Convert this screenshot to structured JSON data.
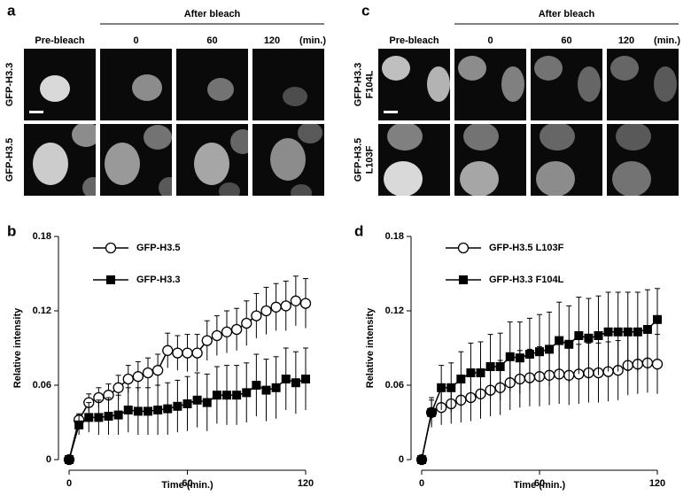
{
  "panels": [
    {
      "label": "a",
      "group": "After bleach",
      "columns": [
        "Pre-bleach",
        "0",
        "60",
        "120"
      ],
      "unit": "(min.)",
      "rows": [
        [
          "GFP-H3.3"
        ],
        [
          "GFP-H3.5"
        ]
      ]
    },
    {
      "label": "c",
      "group": "After bleach",
      "columns": [
        "Pre-bleach",
        "0",
        "60",
        "120"
      ],
      "unit": "(min.)",
      "rows": [
        [
          "GFP-H3.3",
          "F104L"
        ],
        [
          "GFP-H3.5",
          "L103F"
        ]
      ]
    }
  ],
  "chart_data": [
    {
      "type": "line",
      "panel": "b",
      "xlabel": "Time (min.)",
      "ylabel": "Relative intensity",
      "x": [
        0,
        5,
        10,
        15,
        20,
        25,
        30,
        35,
        40,
        45,
        50,
        55,
        60,
        65,
        70,
        75,
        80,
        85,
        90,
        95,
        100,
        105,
        110,
        115,
        120
      ],
      "xlim": [
        0,
        120
      ],
      "xticks": [
        0,
        60,
        120
      ],
      "ylim": [
        0,
        0.18
      ],
      "yticks": [
        0,
        0.06,
        0.12,
        0.18
      ],
      "series": [
        {
          "name": "GFP-H3.5",
          "color": "#000000",
          "marker": "circle",
          "values": [
            0,
            0.032,
            0.046,
            0.05,
            0.052,
            0.058,
            0.065,
            0.067,
            0.07,
            0.072,
            0.088,
            0.086,
            0.086,
            0.086,
            0.096,
            0.1,
            0.103,
            0.105,
            0.11,
            0.116,
            0.12,
            0.123,
            0.124,
            0.128,
            0.126
          ],
          "errors": [
            0,
            0.005,
            0.007,
            0.008,
            0.009,
            0.01,
            0.011,
            0.012,
            0.012,
            0.013,
            0.014,
            0.014,
            0.015,
            0.015,
            0.016,
            0.016,
            0.017,
            0.017,
            0.018,
            0.018,
            0.019,
            0.019,
            0.02,
            0.02,
            0.02
          ]
        },
        {
          "name": "GFP-H3.3",
          "color": "#000000",
          "marker": "square",
          "values": [
            0,
            0.028,
            0.034,
            0.034,
            0.035,
            0.036,
            0.04,
            0.039,
            0.039,
            0.04,
            0.041,
            0.043,
            0.045,
            0.048,
            0.046,
            0.052,
            0.052,
            0.052,
            0.054,
            0.06,
            0.056,
            0.058,
            0.065,
            0.062,
            0.065
          ],
          "errors": [
            0,
            0.008,
            0.012,
            0.014,
            0.015,
            0.016,
            0.018,
            0.019,
            0.019,
            0.02,
            0.021,
            0.021,
            0.022,
            0.022,
            0.023,
            0.023,
            0.024,
            0.024,
            0.024,
            0.025,
            0.025,
            0.025,
            0.025,
            0.025,
            0.025
          ]
        }
      ]
    },
    {
      "type": "line",
      "panel": "d",
      "xlabel": "Time (min.)",
      "ylabel": "Relative intensity",
      "x": [
        0,
        5,
        10,
        15,
        20,
        25,
        30,
        35,
        40,
        45,
        50,
        55,
        60,
        65,
        70,
        75,
        80,
        85,
        90,
        95,
        100,
        105,
        110,
        115,
        120
      ],
      "xlim": [
        0,
        120
      ],
      "xticks": [
        0,
        60,
        120
      ],
      "ylim": [
        0,
        0.18
      ],
      "yticks": [
        0,
        0.06,
        0.12,
        0.18
      ],
      "series": [
        {
          "name": "GFP-H3.5 L103F",
          "color": "#000000",
          "marker": "circle",
          "values": [
            0,
            0.038,
            0.042,
            0.045,
            0.048,
            0.05,
            0.053,
            0.056,
            0.058,
            0.062,
            0.065,
            0.066,
            0.067,
            0.068,
            0.069,
            0.068,
            0.069,
            0.07,
            0.07,
            0.071,
            0.072,
            0.076,
            0.077,
            0.078,
            0.077
          ],
          "errors": [
            0,
            0.01,
            0.014,
            0.016,
            0.018,
            0.019,
            0.02,
            0.021,
            0.022,
            0.022,
            0.023,
            0.023,
            0.024,
            0.024,
            0.024,
            0.024,
            0.024,
            0.024,
            0.024,
            0.024,
            0.024,
            0.024,
            0.024,
            0.024,
            0.024
          ]
        },
        {
          "name": "GFP-H3.3 F104L",
          "color": "#000000",
          "marker": "square",
          "values": [
            0,
            0.038,
            0.058,
            0.058,
            0.065,
            0.07,
            0.07,
            0.075,
            0.075,
            0.083,
            0.082,
            0.085,
            0.087,
            0.089,
            0.096,
            0.093,
            0.1,
            0.098,
            0.1,
            0.103,
            0.103,
            0.103,
            0.103,
            0.105,
            0.113
          ],
          "errors": [
            0,
            0.012,
            0.018,
            0.02,
            0.022,
            0.024,
            0.025,
            0.026,
            0.027,
            0.028,
            0.029,
            0.029,
            0.03,
            0.03,
            0.031,
            0.031,
            0.031,
            0.032,
            0.032,
            0.032,
            0.032,
            0.032,
            0.032,
            0.032,
            0.025
          ]
        }
      ]
    }
  ]
}
